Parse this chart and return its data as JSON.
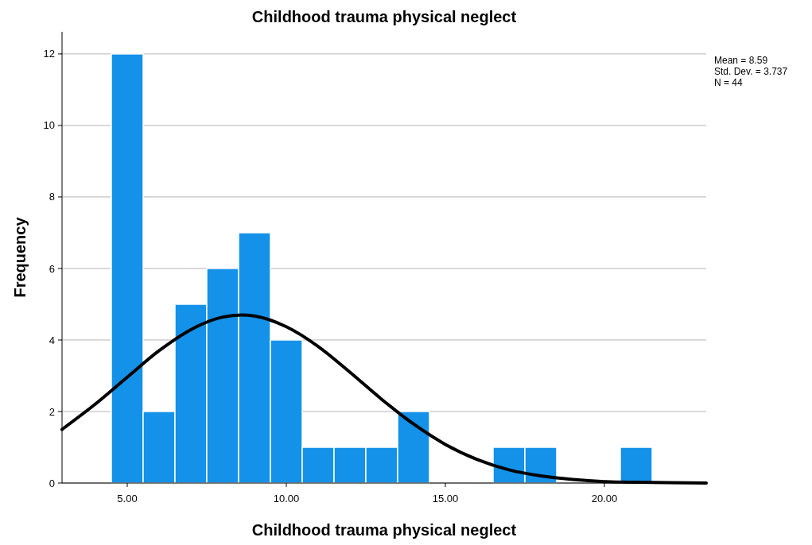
{
  "chart_data": {
    "type": "histogram",
    "title": "Childhood trauma physical neglect",
    "xlabel": "Childhood trauma physical neglect",
    "ylabel": "Frequency",
    "bins": [
      4.5,
      5.5,
      6.5,
      7.5,
      8.5,
      9.5,
      10.5,
      11.5,
      12.5,
      13.5,
      14.5,
      15.5,
      16.5,
      17.5,
      18.5,
      19.5,
      20.5,
      21.5
    ],
    "values": [
      12,
      2,
      5,
      6,
      7,
      4,
      1,
      1,
      1,
      2,
      0,
      0,
      1,
      1,
      0,
      0,
      1
    ],
    "color": "#1491e8",
    "series": [
      {
        "type": "line",
        "color": "#000000",
        "x": [
          2.95,
          4,
          5,
          6,
          7,
          8,
          8.59,
          9,
          10,
          11,
          12,
          13,
          14,
          15,
          16,
          17,
          18,
          19,
          20,
          21,
          22,
          23.2
        ],
        "values": [
          1.5,
          2.21,
          2.96,
          3.7,
          4.29,
          4.64,
          4.7,
          4.67,
          4.37,
          3.82,
          3.1,
          2.34,
          1.65,
          1.08,
          0.66,
          0.37,
          0.2,
          0.1,
          0.04,
          0.02,
          0.01,
          0
        ]
      }
    ],
    "xlim": [
      2.95,
      23.2
    ],
    "xticks": [
      {
        "value": 5,
        "label": "5.00"
      },
      {
        "value": 10,
        "label": "10.00"
      },
      {
        "value": 15,
        "label": "15.00"
      },
      {
        "value": 20,
        "label": "20.00"
      }
    ],
    "ylim": [
      0,
      12.62
    ],
    "yticks": [
      0,
      2,
      4,
      6,
      8,
      10,
      12
    ],
    "grid": "y",
    "annotations": [
      "Mean = 8.59",
      "Std. Dev. = 3.737",
      "N = 44"
    ]
  }
}
